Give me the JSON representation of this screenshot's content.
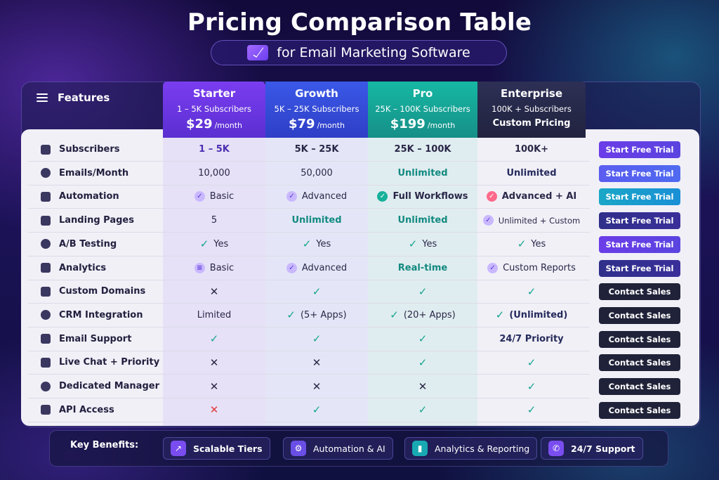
{
  "title": "Pricing Comparison Table",
  "subtitle": "for Email Marketing Software",
  "features_header": "Features",
  "plans": [
    {
      "name": "Starter",
      "subscribers": "1 – 5K Subscribers",
      "price": "$29",
      "period": "/month"
    },
    {
      "name": "Growth",
      "subscribers": "5K – 25K Subscribers",
      "price": "$79",
      "period": "/month"
    },
    {
      "name": "Pro",
      "subscribers": "25K – 100K Subscribers",
      "price": "$199",
      "period": "/month"
    },
    {
      "name": "Enterprise",
      "subscribers": "100K + Subscribers",
      "custom": "Custom Pricing"
    }
  ],
  "rows": [
    {
      "feature": "Subscribers",
      "icon": "user-icon",
      "values": [
        "1 – 5K",
        "5K – 25K",
        "25K – 100K",
        "100K+"
      ],
      "cta": "Start Free Trial"
    },
    {
      "feature": "Emails/Month",
      "icon": "mail-icon",
      "values": [
        "10,000",
        "50,000",
        "Unlimited",
        "Unlimited"
      ],
      "cta": "Start Free Trial"
    },
    {
      "feature": "Automation",
      "icon": "gears-icon",
      "values": [
        "Basic",
        "Advanced",
        "Full Workflows",
        "Advanced + AI"
      ],
      "cta": "Start Free Trial"
    },
    {
      "feature": "Landing Pages",
      "icon": "page-icon",
      "values": [
        "5",
        "Unlimited",
        "Unlimited",
        "Unlimited + Custom"
      ],
      "cta": "Start Free Trial"
    },
    {
      "feature": "A/B Testing",
      "icon": "ab-icon",
      "values": [
        "Yes",
        "Yes",
        "Yes",
        "Yes"
      ],
      "cta": "Start Free Trial"
    },
    {
      "feature": "Analytics",
      "icon": "chart-icon",
      "values": [
        "Basic",
        "Advanced",
        "Real-time",
        "Custom Reports"
      ],
      "cta": "Start Free Trial"
    },
    {
      "feature": "Custom Domains",
      "icon": "globe-icon",
      "values": [
        "no",
        "yes",
        "yes",
        "yes"
      ],
      "cta": "Contact Sales"
    },
    {
      "feature": "CRM Integration",
      "icon": "link-icon",
      "values": [
        "Limited",
        "(5+ Apps)",
        "(20+ Apps)",
        "(Unlimited)"
      ],
      "cta": "Contact Sales"
    },
    {
      "feature": "Email Support",
      "icon": "chat-icon",
      "values": [
        "yes",
        "yes",
        "yes",
        "24/7 Priority"
      ],
      "cta": "Contact Sales"
    },
    {
      "feature": "Live Chat + Priority",
      "icon": "phone-icon",
      "values": [
        "no",
        "no",
        "yes",
        "yes"
      ],
      "cta": "Contact Sales"
    },
    {
      "feature": "Dedicated Manager",
      "icon": "people-icon",
      "values": [
        "no",
        "no",
        "no",
        "yes"
      ],
      "cta": "Contact Sales"
    },
    {
      "feature": "API Access",
      "icon": "api-icon",
      "values": [
        "no",
        "yes",
        "yes",
        "yes"
      ],
      "cta": "Contact Sales"
    }
  ],
  "key_benefits": {
    "label": "Key Benefits:",
    "items": [
      "Scalable Tiers",
      "Automation & AI",
      "Analytics & Reporting",
      "24/7 Support"
    ]
  }
}
